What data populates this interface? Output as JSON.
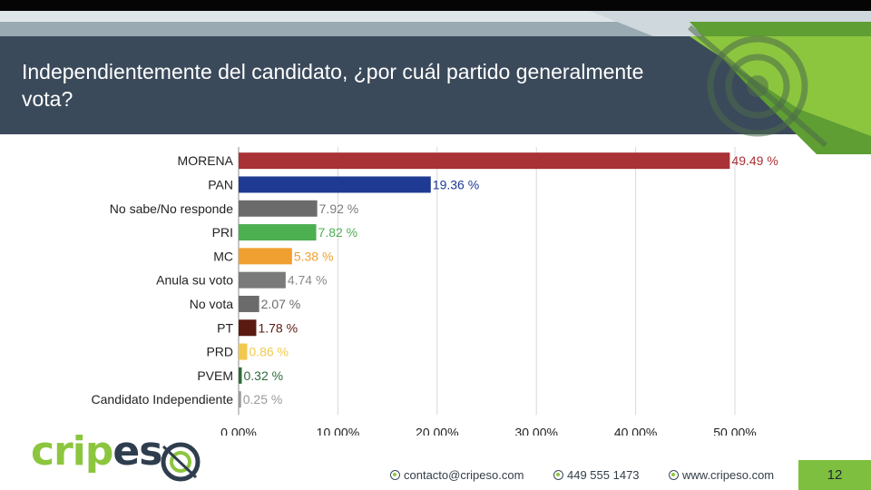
{
  "slide": {
    "title": "Independientemente del candidato, ¿por cuál partido generalmente vota?",
    "page_number": "12"
  },
  "footer": {
    "logo": "cripeso",
    "email": "contacto@cripeso.com",
    "phone": "449 555 1473",
    "website": "www.cripeso.com"
  },
  "colors": {
    "title_bg": "#3b4a5b",
    "accent_green": "#7fbf3f"
  },
  "chart_data": {
    "type": "bar",
    "orientation": "horizontal",
    "categories": [
      "MORENA",
      "PAN",
      "No sabe/No responde",
      "PRI",
      "MC",
      "Anula su voto",
      "No vota",
      "PT",
      "PRD",
      "PVEM",
      "Candidato Independiente"
    ],
    "values": [
      49.49,
      19.36,
      7.92,
      7.82,
      5.38,
      4.74,
      2.07,
      1.78,
      0.86,
      0.32,
      0.25
    ],
    "value_labels": [
      "49.49 %",
      "19.36 %",
      "7.92 %",
      "7.82 %",
      "5.38 %",
      "4.74 %",
      "2.07 %",
      "1.78 %",
      "0.86 %",
      "0.32 %",
      "0.25 %"
    ],
    "colors": [
      "#a83236",
      "#1f3a93",
      "#6b6b6b",
      "#4caf50",
      "#f0a030",
      "#7a7a7a",
      "#6b6b6b",
      "#5a1a12",
      "#f2c94c",
      "#2e6b3a",
      "#9a9a9a"
    ],
    "label_colors": [
      "#a83236",
      "#1f3a93",
      "#7a7a7a",
      "#4caf50",
      "#f0a030",
      "#8a8a8a",
      "#6b6b6b",
      "#5a1a12",
      "#f2c94c",
      "#2e6b3a",
      "#9a9a9a"
    ],
    "xlim": [
      0,
      50
    ],
    "xticks": [
      0,
      10,
      20,
      30,
      40,
      50
    ],
    "xtick_labels": [
      "0.00%",
      "10.00%",
      "20.00%",
      "30.00%",
      "40.00%",
      "50.00%"
    ],
    "grid": true
  }
}
